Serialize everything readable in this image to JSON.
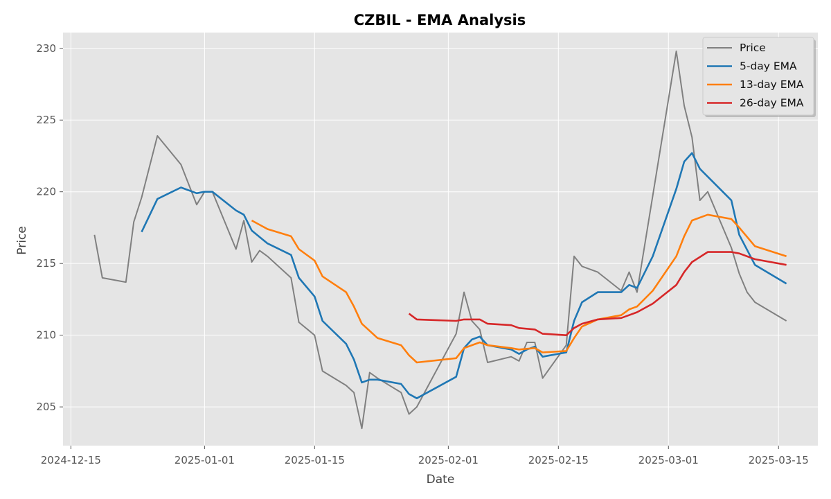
{
  "chart_data": {
    "type": "line",
    "title": "CZBIL - EMA Analysis",
    "xlabel": "Date",
    "ylabel": "Price",
    "x_ticks": [
      "2024-12-15",
      "2025-01-01",
      "2025-01-15",
      "2025-02-01",
      "2025-02-15",
      "2025-03-01",
      "2025-03-15"
    ],
    "y_ticks": [
      205,
      210,
      215,
      220,
      225,
      230
    ],
    "xlim": [
      "2024-12-14",
      "2025-03-20"
    ],
    "ylim": [
      202.3,
      231.1
    ],
    "grid": true,
    "legend_position": "top-right",
    "series": [
      {
        "name": "Price",
        "color": "#808080",
        "points": [
          [
            "2024-12-18",
            217.0
          ],
          [
            "2024-12-19",
            214.0
          ],
          [
            "2024-12-22",
            213.7
          ],
          [
            "2024-12-23",
            217.9
          ],
          [
            "2024-12-24",
            219.6
          ],
          [
            "2024-12-26",
            223.9
          ],
          [
            "2024-12-29",
            221.9
          ],
          [
            "2024-12-31",
            219.1
          ],
          [
            "2025-01-01",
            220.0
          ],
          [
            "2025-01-02",
            220.0
          ],
          [
            "2025-01-05",
            216.0
          ],
          [
            "2025-01-06",
            218.0
          ],
          [
            "2025-01-07",
            215.1
          ],
          [
            "2025-01-08",
            215.9
          ],
          [
            "2025-01-09",
            215.5
          ],
          [
            "2025-01-12",
            214.0
          ],
          [
            "2025-01-13",
            210.9
          ],
          [
            "2025-01-15",
            210.0
          ],
          [
            "2025-01-16",
            207.5
          ],
          [
            "2025-01-19",
            206.5
          ],
          [
            "2025-01-20",
            206.0
          ],
          [
            "2025-01-21",
            203.5
          ],
          [
            "2025-01-22",
            207.4
          ],
          [
            "2025-01-23",
            207.0
          ],
          [
            "2025-01-26",
            206.0
          ],
          [
            "2025-01-27",
            204.5
          ],
          [
            "2025-01-28",
            205.0
          ],
          [
            "2025-02-02",
            210.1
          ],
          [
            "2025-02-03",
            213.0
          ],
          [
            "2025-02-04",
            211.0
          ],
          [
            "2025-02-05",
            210.4
          ],
          [
            "2025-02-06",
            208.1
          ],
          [
            "2025-02-09",
            208.5
          ],
          [
            "2025-02-10",
            208.2
          ],
          [
            "2025-02-11",
            209.5
          ],
          [
            "2025-02-12",
            209.5
          ],
          [
            "2025-02-13",
            207.0
          ],
          [
            "2025-02-16",
            209.3
          ],
          [
            "2025-02-17",
            215.5
          ],
          [
            "2025-02-18",
            214.8
          ],
          [
            "2025-02-20",
            214.4
          ],
          [
            "2025-02-23",
            213.1
          ],
          [
            "2025-02-24",
            214.4
          ],
          [
            "2025-02-25",
            213.0
          ],
          [
            "2025-03-02",
            229.8
          ],
          [
            "2025-03-03",
            226.0
          ],
          [
            "2025-03-04",
            223.8
          ],
          [
            "2025-03-05",
            219.4
          ],
          [
            "2025-03-06",
            220.0
          ],
          [
            "2025-03-09",
            216.1
          ],
          [
            "2025-03-10",
            214.3
          ],
          [
            "2025-03-11",
            213.0
          ],
          [
            "2025-03-12",
            212.3
          ],
          [
            "2025-03-16",
            211.0
          ]
        ]
      },
      {
        "name": "5-day EMA",
        "color": "#1f77b4",
        "points": [
          [
            "2024-12-24",
            217.2
          ],
          [
            "2024-12-26",
            219.5
          ],
          [
            "2024-12-29",
            220.3
          ],
          [
            "2024-12-31",
            219.9
          ],
          [
            "2025-01-01",
            220.0
          ],
          [
            "2025-01-02",
            220.0
          ],
          [
            "2025-01-05",
            218.7
          ],
          [
            "2025-01-06",
            218.4
          ],
          [
            "2025-01-07",
            217.3
          ],
          [
            "2025-01-09",
            216.4
          ],
          [
            "2025-01-12",
            215.6
          ],
          [
            "2025-01-13",
            214.0
          ],
          [
            "2025-01-15",
            212.7
          ],
          [
            "2025-01-16",
            211.0
          ],
          [
            "2025-01-19",
            209.4
          ],
          [
            "2025-01-20",
            208.3
          ],
          [
            "2025-01-21",
            206.7
          ],
          [
            "2025-01-22",
            206.9
          ],
          [
            "2025-01-23",
            206.9
          ],
          [
            "2025-01-26",
            206.6
          ],
          [
            "2025-01-27",
            205.9
          ],
          [
            "2025-01-28",
            205.6
          ],
          [
            "2025-02-02",
            207.1
          ],
          [
            "2025-02-03",
            209.1
          ],
          [
            "2025-02-04",
            209.7
          ],
          [
            "2025-02-05",
            209.9
          ],
          [
            "2025-02-06",
            209.3
          ],
          [
            "2025-02-09",
            209.0
          ],
          [
            "2025-02-10",
            208.7
          ],
          [
            "2025-02-11",
            209.0
          ],
          [
            "2025-02-12",
            209.2
          ],
          [
            "2025-02-13",
            208.5
          ],
          [
            "2025-02-16",
            208.8
          ],
          [
            "2025-02-17",
            211.0
          ],
          [
            "2025-02-18",
            212.3
          ],
          [
            "2025-02-20",
            213.0
          ],
          [
            "2025-02-23",
            213.0
          ],
          [
            "2025-02-24",
            213.5
          ],
          [
            "2025-02-25",
            213.3
          ],
          [
            "2025-02-27",
            215.5
          ],
          [
            "2025-03-02",
            220.2
          ],
          [
            "2025-03-03",
            222.1
          ],
          [
            "2025-03-04",
            222.7
          ],
          [
            "2025-03-05",
            221.6
          ],
          [
            "2025-03-09",
            219.4
          ],
          [
            "2025-03-10",
            217.0
          ],
          [
            "2025-03-12",
            214.9
          ],
          [
            "2025-03-16",
            213.6
          ]
        ]
      },
      {
        "name": "13-day EMA",
        "color": "#ff7f0e",
        "points": [
          [
            "2025-01-07",
            218.0
          ],
          [
            "2025-01-09",
            217.4
          ],
          [
            "2025-01-12",
            216.9
          ],
          [
            "2025-01-13",
            216.0
          ],
          [
            "2025-01-15",
            215.2
          ],
          [
            "2025-01-16",
            214.1
          ],
          [
            "2025-01-19",
            213.0
          ],
          [
            "2025-01-20",
            212.0
          ],
          [
            "2025-01-21",
            210.8
          ],
          [
            "2025-01-23",
            209.8
          ],
          [
            "2025-01-26",
            209.3
          ],
          [
            "2025-01-27",
            208.6
          ],
          [
            "2025-01-28",
            208.1
          ],
          [
            "2025-02-02",
            208.4
          ],
          [
            "2025-02-03",
            209.1
          ],
          [
            "2025-02-04",
            209.3
          ],
          [
            "2025-02-05",
            209.5
          ],
          [
            "2025-02-06",
            209.3
          ],
          [
            "2025-02-09",
            209.1
          ],
          [
            "2025-02-10",
            209.0
          ],
          [
            "2025-02-12",
            209.1
          ],
          [
            "2025-02-13",
            208.8
          ],
          [
            "2025-02-16",
            208.9
          ],
          [
            "2025-02-17",
            209.8
          ],
          [
            "2025-02-18",
            210.6
          ],
          [
            "2025-02-20",
            211.1
          ],
          [
            "2025-02-23",
            211.4
          ],
          [
            "2025-02-24",
            211.8
          ],
          [
            "2025-02-25",
            212.0
          ],
          [
            "2025-02-27",
            213.1
          ],
          [
            "2025-03-02",
            215.5
          ],
          [
            "2025-03-03",
            216.9
          ],
          [
            "2025-03-04",
            218.0
          ],
          [
            "2025-03-06",
            218.4
          ],
          [
            "2025-03-09",
            218.1
          ],
          [
            "2025-03-10",
            217.5
          ],
          [
            "2025-03-12",
            216.2
          ],
          [
            "2025-03-16",
            215.5
          ]
        ]
      },
      {
        "name": "26-day EMA",
        "color": "#d62728",
        "points": [
          [
            "2025-01-27",
            211.5
          ],
          [
            "2025-01-28",
            211.1
          ],
          [
            "2025-02-02",
            211.0
          ],
          [
            "2025-02-03",
            211.1
          ],
          [
            "2025-02-05",
            211.1
          ],
          [
            "2025-02-06",
            210.8
          ],
          [
            "2025-02-09",
            210.7
          ],
          [
            "2025-02-10",
            210.5
          ],
          [
            "2025-02-12",
            210.4
          ],
          [
            "2025-02-13",
            210.1
          ],
          [
            "2025-02-16",
            210.0
          ],
          [
            "2025-02-17",
            210.5
          ],
          [
            "2025-02-18",
            210.8
          ],
          [
            "2025-02-20",
            211.1
          ],
          [
            "2025-02-23",
            211.2
          ],
          [
            "2025-02-24",
            211.4
          ],
          [
            "2025-02-25",
            211.6
          ],
          [
            "2025-02-27",
            212.2
          ],
          [
            "2025-03-02",
            213.5
          ],
          [
            "2025-03-03",
            214.4
          ],
          [
            "2025-03-04",
            215.1
          ],
          [
            "2025-03-06",
            215.8
          ],
          [
            "2025-03-09",
            215.8
          ],
          [
            "2025-03-10",
            215.7
          ],
          [
            "2025-03-12",
            215.3
          ],
          [
            "2025-03-16",
            214.9
          ]
        ]
      }
    ]
  }
}
